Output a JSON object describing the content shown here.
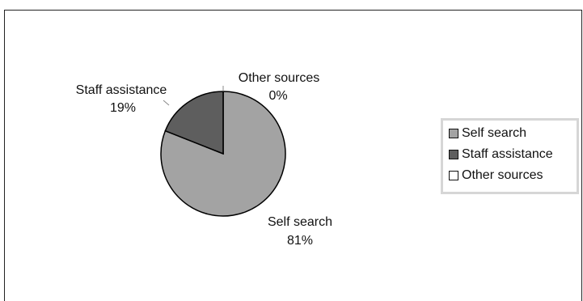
{
  "chart_data": {
    "type": "pie",
    "slices": [
      {
        "name": "Self search",
        "value": 81,
        "label_name": "Self search",
        "label_value": "81%",
        "color": "#a3a3a3"
      },
      {
        "name": "Staff assistance",
        "value": 19,
        "label_name": "Staff assistance",
        "label_value": "19%",
        "color": "#5e5e5e"
      },
      {
        "name": "Other sources",
        "value": 0,
        "label_name": "Other sources",
        "label_value": "0%",
        "color": "#ffffff"
      }
    ],
    "start_angle_deg": 0,
    "direction": "clockwise",
    "legend_position": "right"
  }
}
